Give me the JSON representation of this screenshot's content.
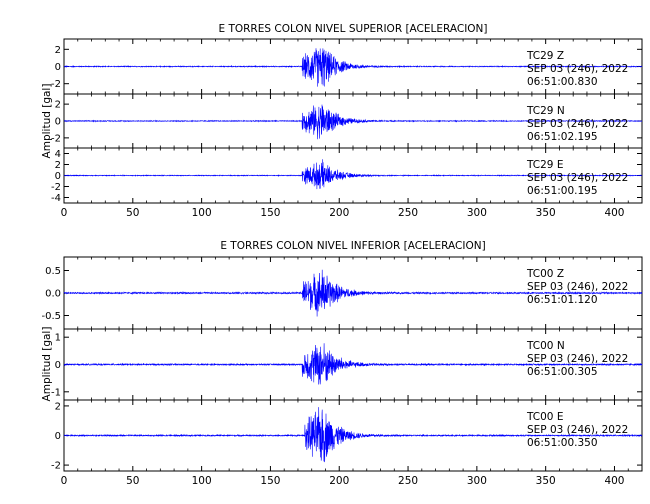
{
  "chart_data": [
    {
      "type": "line",
      "title": "E TORRES COLON NIVEL SUPERIOR [ACELERACION]",
      "ylabel": "Amplitud [gal]",
      "xlim": [
        0,
        420
      ],
      "xticks": [
        0,
        50,
        100,
        150,
        200,
        250,
        300,
        350,
        400
      ],
      "grid": false,
      "line_color": "#0000ff",
      "panels": [
        {
          "station": "TC29",
          "component": "Z",
          "date": "SEP 03 (246), 2022",
          "time": "06:51:00.830",
          "ylim": [
            -3.2,
            3.2
          ],
          "yticks": [
            -2,
            0,
            2
          ],
          "onset": 173,
          "peak_time": 188,
          "peak": 3.0,
          "noise": 0.06
        },
        {
          "station": "TC29",
          "component": "N",
          "date": "SEP 03 (246), 2022",
          "time": "06:51:02.195",
          "ylim": [
            -3.2,
            3.2
          ],
          "yticks": [
            -2,
            0,
            2
          ],
          "onset": 173,
          "peak_time": 188,
          "peak": 2.6,
          "noise": 0.06
        },
        {
          "station": "TC29",
          "component": "E",
          "date": "SEP 03 (246), 2022",
          "time": "06:51:00.195",
          "ylim": [
            -5.0,
            5.0
          ],
          "yticks": [
            -4,
            -2,
            0,
            2,
            4
          ],
          "onset": 173,
          "peak_time": 188,
          "peak": 3.0,
          "noise": 0.08
        }
      ]
    },
    {
      "type": "line",
      "title": "E TORRES COLON NIVEL INFERIOR [ACELERACION]",
      "ylabel": "Amplitud [gal]",
      "xlim": [
        0,
        420
      ],
      "xticks": [
        0,
        50,
        100,
        150,
        200,
        250,
        300,
        350,
        400
      ],
      "grid": false,
      "line_color": "#0000ff",
      "panels": [
        {
          "station": "TC00",
          "component": "Z",
          "date": "SEP 03 (246), 2022",
          "time": "06:51:01.120",
          "ylim": [
            -0.8,
            0.8
          ],
          "yticks": [
            -0.5,
            0.0,
            0.5
          ],
          "ytick_labels": [
            "-0.5",
            "0.0",
            "0.5"
          ],
          "onset": 173,
          "peak_time": 188,
          "peak": 0.6,
          "noise": 0.02
        },
        {
          "station": "TC00",
          "component": "N",
          "date": "SEP 03 (246), 2022",
          "time": "06:51:00.305",
          "ylim": [
            -1.3,
            1.3
          ],
          "yticks": [
            -1,
            0,
            1
          ],
          "onset": 173,
          "peak_time": 188,
          "peak": 1.0,
          "noise": 0.03
        },
        {
          "station": "TC00",
          "component": "E",
          "date": "SEP 03 (246), 2022",
          "time": "06:51:00.350",
          "ylim": [
            -2.4,
            2.4
          ],
          "yticks": [
            -2,
            0,
            2
          ],
          "onset": 175,
          "peak_time": 188,
          "peak": 2.3,
          "noise": 0.05
        }
      ]
    }
  ]
}
